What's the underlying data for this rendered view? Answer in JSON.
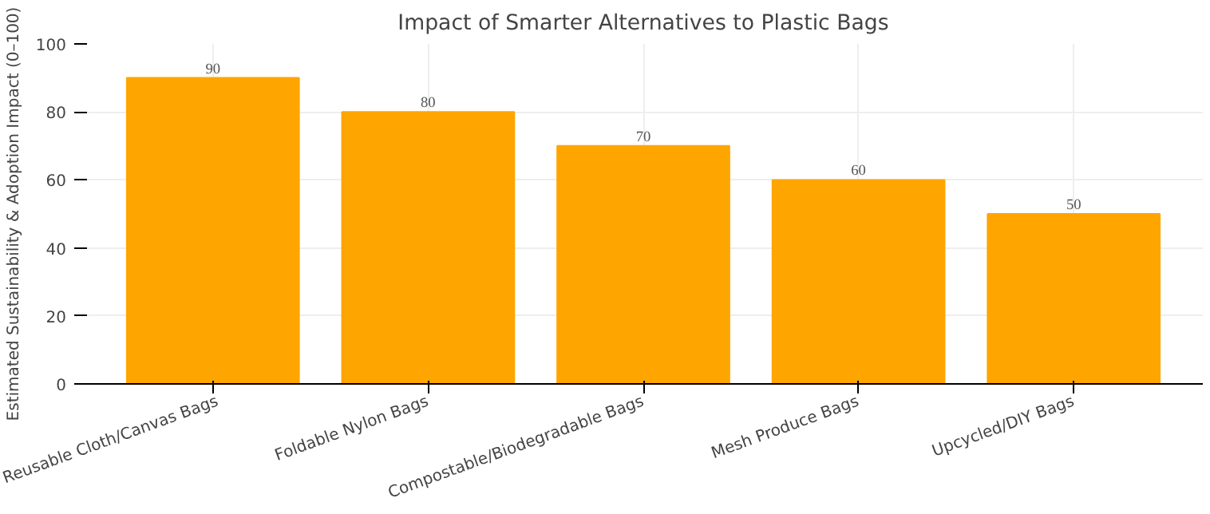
{
  "chart_data": {
    "type": "bar",
    "title": "Impact of Smarter Alternatives to Plastic Bags",
    "ylabel": "Estimated Sustainability & Adoption Impact (0–100)",
    "categories": [
      "Reusable Cloth/Canvas Bags",
      "Foldable Nylon Bags",
      "Compostable/Biodegradable Bags",
      "Mesh Produce Bags",
      "Upcycled/DIY Bags"
    ],
    "values": [
      90,
      80,
      70,
      60,
      50
    ],
    "color": "#ffa500",
    "ylim": [
      0,
      100
    ],
    "yticks": [
      0,
      20,
      40,
      60,
      80,
      100
    ],
    "grid": true,
    "data_labels": true
  }
}
